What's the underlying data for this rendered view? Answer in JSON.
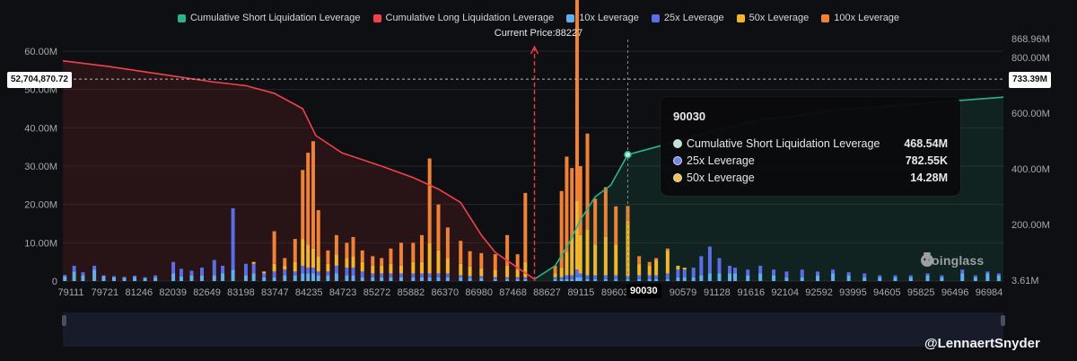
{
  "chart_data": {
    "type": "bar",
    "title": "",
    "legend": [
      {
        "name": "Cumulative Short Liquidation Leverage",
        "color": "#2bb38a"
      },
      {
        "name": "Cumulative Long Liquidation Leverage",
        "color": "#f0424a"
      },
      {
        "name": "10x Leverage",
        "color": "#5fb0ec"
      },
      {
        "name": "25x Leverage",
        "color": "#5b6ee8"
      },
      {
        "name": "50x Leverage",
        "color": "#f2b52c"
      },
      {
        "name": "100x Leverage",
        "color": "#f08236"
      }
    ],
    "current_price_label": "Current Price:88227",
    "current_price": 88227,
    "x_ticks": [
      "79111",
      "79721",
      "81246",
      "82039",
      "82649",
      "83198",
      "83747",
      "84235",
      "84723",
      "85272",
      "85882",
      "86370",
      "86980",
      "87468",
      "88627",
      "89115",
      "89603",
      "90030",
      "90579",
      "91128",
      "91616",
      "92104",
      "92592",
      "93995",
      "94605",
      "95825",
      "96496",
      "96984"
    ],
    "xlim": [
      79111,
      97290
    ],
    "left_y_ticks": [
      "0",
      "10.00M",
      "20.00M",
      "30.00M",
      "40.00M",
      "50.00M",
      "60.00M"
    ],
    "left_ylim": [
      0,
      60000000
    ],
    "right_y_ticks": [
      "3.61M",
      "200.00M",
      "400.00M",
      "600.00M",
      "800.00M",
      "868.96M"
    ],
    "right_ylim": [
      3610000,
      868960000
    ],
    "crosshair_left_label": "52,704,870.72",
    "crosshair_right_label": "733.39M",
    "crosshair_value": 52704870.72,
    "hover_x_label": "90030",
    "tooltip": {
      "title": "90030",
      "rows": [
        {
          "label": "Cumulative Short Liquidation Leverage",
          "value": "468.54M",
          "color": "#b9e6dc"
        },
        {
          "label": "25x Leverage",
          "value": "782.55K",
          "color": "#6f86f0"
        },
        {
          "label": "50x Leverage",
          "value": "14.28M",
          "color": "#f2c14e"
        }
      ]
    },
    "bars": [
      {
        "x": 79150,
        "l10": 1.2,
        "l25": 0.4,
        "l50": 0,
        "l100": 0
      },
      {
        "x": 79330,
        "l10": 2.5,
        "l25": 1.5,
        "l50": 0,
        "l100": 0
      },
      {
        "x": 79500,
        "l10": 1.5,
        "l25": 0.8,
        "l50": 0,
        "l100": 0
      },
      {
        "x": 79720,
        "l10": 3.0,
        "l25": 1.0,
        "l50": 0,
        "l100": 0
      },
      {
        "x": 79900,
        "l10": 1.3,
        "l25": 0.2,
        "l50": 0,
        "l100": 0
      },
      {
        "x": 80100,
        "l10": 1.0,
        "l25": 0.3,
        "l50": 0,
        "l100": 0
      },
      {
        "x": 80300,
        "l10": 0.9,
        "l25": 0.2,
        "l50": 0,
        "l100": 0
      },
      {
        "x": 80500,
        "l10": 1.1,
        "l25": 0.3,
        "l50": 0,
        "l100": 0
      },
      {
        "x": 80700,
        "l10": 0.8,
        "l25": 0.2,
        "l50": 0,
        "l100": 0
      },
      {
        "x": 80900,
        "l10": 1.0,
        "l25": 0.5,
        "l50": 0,
        "l100": 0
      },
      {
        "x": 81246,
        "l10": 2.0,
        "l25": 3.0,
        "l50": 0,
        "l100": 0
      },
      {
        "x": 81400,
        "l10": 1.2,
        "l25": 2.0,
        "l50": 0,
        "l100": 0
      },
      {
        "x": 81600,
        "l10": 1.5,
        "l25": 1.2,
        "l50": 0,
        "l100": 0
      },
      {
        "x": 81800,
        "l10": 1.5,
        "l25": 2.0,
        "l50": 0,
        "l100": 0
      },
      {
        "x": 82039,
        "l10": 1.5,
        "l25": 4.0,
        "l50": 0,
        "l100": 0
      },
      {
        "x": 82200,
        "l10": 2.0,
        "l25": 2.0,
        "l50": 0,
        "l100": 0
      },
      {
        "x": 82400,
        "l10": 3.0,
        "l25": 16.0,
        "l50": 0,
        "l100": 0
      },
      {
        "x": 82649,
        "l10": 1.5,
        "l25": 3.0,
        "l50": 0,
        "l100": 0
      },
      {
        "x": 82800,
        "l10": 2.0,
        "l25": 2.5,
        "l50": 0.5,
        "l100": 0
      },
      {
        "x": 83000,
        "l10": 1.0,
        "l25": 1.0,
        "l50": 0.5,
        "l100": 0
      },
      {
        "x": 83198,
        "l10": 1.0,
        "l25": 1.5,
        "l50": 2.0,
        "l100": 8.5
      },
      {
        "x": 83400,
        "l10": 1.5,
        "l25": 1.5,
        "l50": 1.0,
        "l100": 2.0
      },
      {
        "x": 83600,
        "l10": 1.5,
        "l25": 1.0,
        "l50": 2.5,
        "l100": 6.0
      },
      {
        "x": 83747,
        "l10": 2.0,
        "l25": 2.0,
        "l50": 7.0,
        "l100": 18.0
      },
      {
        "x": 83850,
        "l10": 2.0,
        "l25": 1.5,
        "l50": 6.0,
        "l100": 24.0
      },
      {
        "x": 83950,
        "l10": 2.0,
        "l25": 1.5,
        "l50": 5.0,
        "l100": 28.0
      },
      {
        "x": 84050,
        "l10": 1.5,
        "l25": 1.0,
        "l50": 4.0,
        "l100": 12.0
      },
      {
        "x": 84235,
        "l10": 1.5,
        "l25": 1.0,
        "l50": 2.0,
        "l100": 3.5
      },
      {
        "x": 84400,
        "l10": 2.0,
        "l25": 2.0,
        "l50": 3.0,
        "l100": 5.0
      },
      {
        "x": 84600,
        "l10": 1.5,
        "l25": 2.0,
        "l50": 2.5,
        "l100": 4.0
      },
      {
        "x": 84723,
        "l10": 1.5,
        "l25": 2.0,
        "l50": 3.0,
        "l100": 5.0
      },
      {
        "x": 84900,
        "l10": 1.0,
        "l25": 1.5,
        "l50": 2.5,
        "l100": 3.0
      },
      {
        "x": 85100,
        "l10": 1.0,
        "l25": 1.0,
        "l50": 2.0,
        "l100": 2.5
      },
      {
        "x": 85272,
        "l10": 1.0,
        "l25": 1.0,
        "l50": 2.0,
        "l100": 2.0
      },
      {
        "x": 85450,
        "l10": 1.0,
        "l25": 1.0,
        "l50": 2.5,
        "l100": 4.0
      },
      {
        "x": 85650,
        "l10": 1.0,
        "l25": 1.0,
        "l50": 2.0,
        "l100": 6.0
      },
      {
        "x": 85882,
        "l10": 1.0,
        "l25": 1.0,
        "l50": 3.0,
        "l100": 5.0
      },
      {
        "x": 86050,
        "l10": 1.0,
        "l25": 1.0,
        "l50": 3.0,
        "l100": 7.0
      },
      {
        "x": 86200,
        "l10": 1.0,
        "l25": 1.0,
        "l50": 8.0,
        "l100": 22.0
      },
      {
        "x": 86370,
        "l10": 1.0,
        "l25": 1.0,
        "l50": 6.0,
        "l100": 12.0
      },
      {
        "x": 86550,
        "l10": 1.0,
        "l25": 1.0,
        "l50": 4.0,
        "l100": 8.0
      },
      {
        "x": 86800,
        "l10": 1.0,
        "l25": 0.5,
        "l50": 3.0,
        "l100": 6.0
      },
      {
        "x": 86980,
        "l10": 0.8,
        "l25": 0.5,
        "l50": 2.5,
        "l100": 4.0
      },
      {
        "x": 87200,
        "l10": 0.8,
        "l25": 0.5,
        "l50": 2.0,
        "l100": 4.0
      },
      {
        "x": 87468,
        "l10": 0.5,
        "l25": 0.5,
        "l50": 2.0,
        "l100": 4.0
      },
      {
        "x": 87700,
        "l10": 0.5,
        "l25": 0.5,
        "l50": 3.0,
        "l100": 8.0
      },
      {
        "x": 87900,
        "l10": 0.5,
        "l25": 0.5,
        "l50": 2.0,
        "l100": 4.0
      },
      {
        "x": 88050,
        "l10": 0.5,
        "l25": 0.5,
        "l50": 4.0,
        "l100": 18.0
      },
      {
        "x": 88627,
        "l10": 0.5,
        "l25": 0.5,
        "l50": 1.0,
        "l100": 2.0
      },
      {
        "x": 88750,
        "l10": 0.5,
        "l25": 0.5,
        "l50": 2.5,
        "l100": 20.0
      },
      {
        "x": 88850,
        "l10": 0.5,
        "l25": 1.0,
        "l50": 6.0,
        "l100": 25.0
      },
      {
        "x": 88950,
        "l10": 0.5,
        "l25": 1.0,
        "l50": 10.0,
        "l100": 18.0
      },
      {
        "x": 89050,
        "l10": 1.0,
        "l25": 2.0,
        "l50": 18.0,
        "l100": 57.0
      },
      {
        "x": 89115,
        "l10": 1.0,
        "l25": 1.0,
        "l50": 10.0,
        "l100": 18.0
      },
      {
        "x": 89250,
        "l10": 0.5,
        "l25": 1.0,
        "l50": 12.0,
        "l100": 25.0
      },
      {
        "x": 89400,
        "l10": 0.5,
        "l25": 1.0,
        "l50": 8.0,
        "l100": 12.0
      },
      {
        "x": 89603,
        "l10": 0.5,
        "l25": 1.0,
        "l50": 10.0,
        "l100": 13.0
      },
      {
        "x": 89800,
        "l10": 0.5,
        "l25": 1.0,
        "l50": 8.0,
        "l100": 10.0
      },
      {
        "x": 90030,
        "l10": 0.5,
        "l25": 0.8,
        "l50": 14.3,
        "l100": 4.0
      },
      {
        "x": 90250,
        "l10": 0.5,
        "l25": 1.0,
        "l50": 3.0,
        "l100": 2.0
      },
      {
        "x": 90450,
        "l10": 0.5,
        "l25": 1.0,
        "l50": 2.5,
        "l100": 1.0
      },
      {
        "x": 90579,
        "l10": 0.5,
        "l25": 1.0,
        "l50": 4.0,
        "l100": 0.5
      },
      {
        "x": 90800,
        "l10": 0.5,
        "l25": 1.5,
        "l50": 6.0,
        "l100": 0.5
      },
      {
        "x": 91000,
        "l10": 1.0,
        "l25": 2.0,
        "l50": 1.0,
        "l100": 0
      },
      {
        "x": 91128,
        "l10": 1.0,
        "l25": 2.0,
        "l50": 0.5,
        "l100": 0
      },
      {
        "x": 91300,
        "l10": 1.0,
        "l25": 2.5,
        "l50": 0,
        "l100": 0
      },
      {
        "x": 91450,
        "l10": 1.5,
        "l25": 5.0,
        "l50": 0,
        "l100": 0
      },
      {
        "x": 91616,
        "l10": 2.0,
        "l25": 7.0,
        "l50": 0,
        "l100": 0
      },
      {
        "x": 91800,
        "l10": 2.0,
        "l25": 4.0,
        "l50": 0,
        "l100": 0
      },
      {
        "x": 92000,
        "l10": 2.0,
        "l25": 2.0,
        "l50": 0,
        "l100": 0
      },
      {
        "x": 92104,
        "l10": 2.0,
        "l25": 1.5,
        "l50": 0,
        "l100": 0
      },
      {
        "x": 92350,
        "l10": 1.5,
        "l25": 1.5,
        "l50": 0,
        "l100": 0
      },
      {
        "x": 92592,
        "l10": 2.0,
        "l25": 2.0,
        "l50": 0,
        "l100": 0
      },
      {
        "x": 92850,
        "l10": 1.5,
        "l25": 1.5,
        "l50": 0,
        "l100": 0
      },
      {
        "x": 93100,
        "l10": 1.0,
        "l25": 1.5,
        "l50": 0,
        "l100": 0
      },
      {
        "x": 93400,
        "l10": 1.0,
        "l25": 2.0,
        "l50": 0,
        "l100": 0
      },
      {
        "x": 93700,
        "l10": 1.5,
        "l25": 1.0,
        "l50": 0,
        "l100": 0
      },
      {
        "x": 93995,
        "l10": 2.0,
        "l25": 1.0,
        "l50": 0,
        "l100": 0
      },
      {
        "x": 94300,
        "l10": 1.5,
        "l25": 0.8,
        "l50": 0,
        "l100": 0
      },
      {
        "x": 94605,
        "l10": 1.0,
        "l25": 1.0,
        "l50": 0,
        "l100": 0
      },
      {
        "x": 94900,
        "l10": 1.0,
        "l25": 0.5,
        "l50": 0,
        "l100": 0
      },
      {
        "x": 95200,
        "l10": 1.0,
        "l25": 0.5,
        "l50": 0,
        "l100": 0
      },
      {
        "x": 95500,
        "l10": 1.0,
        "l25": 0.5,
        "l50": 0,
        "l100": 0
      },
      {
        "x": 95825,
        "l10": 1.5,
        "l25": 0.5,
        "l50": 0,
        "l100": 0
      },
      {
        "x": 96100,
        "l10": 1.0,
        "l25": 0.5,
        "l50": 0,
        "l100": 0
      },
      {
        "x": 96496,
        "l10": 2.0,
        "l25": 1.0,
        "l50": 0,
        "l100": 0
      },
      {
        "x": 96750,
        "l10": 1.0,
        "l25": 0.5,
        "l50": 0,
        "l100": 0
      },
      {
        "x": 96984,
        "l10": 2.0,
        "l25": 0.5,
        "l50": 0,
        "l100": 0
      },
      {
        "x": 97200,
        "l10": 1.5,
        "l25": 0.5,
        "l50": 0,
        "l100": 0
      }
    ],
    "long_curve": [
      {
        "x": 79111,
        "y": 57.5
      },
      {
        "x": 80000,
        "y": 56.0
      },
      {
        "x": 81000,
        "y": 54.0
      },
      {
        "x": 82000,
        "y": 52.0
      },
      {
        "x": 82649,
        "y": 51.0
      },
      {
        "x": 83198,
        "y": 49.0
      },
      {
        "x": 83747,
        "y": 45.0
      },
      {
        "x": 84000,
        "y": 38.0
      },
      {
        "x": 84500,
        "y": 33.5
      },
      {
        "x": 85272,
        "y": 30.0
      },
      {
        "x": 85882,
        "y": 27.0
      },
      {
        "x": 86370,
        "y": 24.0
      },
      {
        "x": 86800,
        "y": 20.5
      },
      {
        "x": 87200,
        "y": 12.0
      },
      {
        "x": 87468,
        "y": 7.5
      },
      {
        "x": 87900,
        "y": 3.5
      },
      {
        "x": 88227,
        "y": 0.5
      }
    ],
    "short_curve": [
      {
        "x": 88227,
        "y": 0.5
      },
      {
        "x": 88627,
        "y": 4.0
      },
      {
        "x": 88900,
        "y": 10.0
      },
      {
        "x": 89115,
        "y": 16.0
      },
      {
        "x": 89400,
        "y": 22.0
      },
      {
        "x": 89700,
        "y": 25.0
      },
      {
        "x": 90030,
        "y": 33.0
      },
      {
        "x": 90579,
        "y": 35.0
      },
      {
        "x": 91128,
        "y": 37.0
      },
      {
        "x": 91616,
        "y": 39.0
      },
      {
        "x": 92592,
        "y": 42.0
      },
      {
        "x": 93995,
        "y": 44.5
      },
      {
        "x": 95825,
        "y": 46.5
      },
      {
        "x": 97290,
        "y": 48.0
      }
    ]
  },
  "watermark": "coinglass",
  "credit": "@LennaertSnyder"
}
